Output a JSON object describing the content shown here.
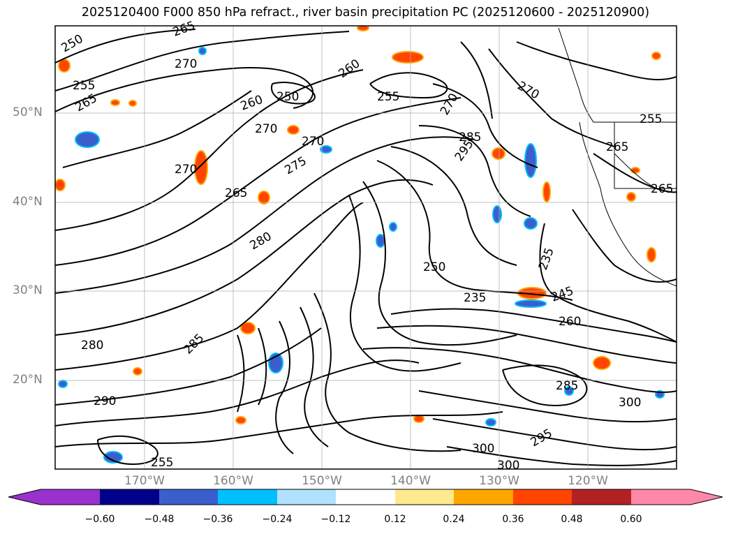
{
  "title": "2025120400 F000 850 hPa refract., river basin precipitation PC (2025120600 - 2025120900)",
  "lat_labels": [
    "50°N",
    "40°N",
    "30°N",
    "20°N"
  ],
  "lon_labels": [
    "170°W",
    "160°W",
    "150°W",
    "140°W",
    "130°W",
    "120°W"
  ],
  "contour_labels": [
    {
      "text": "250"
    },
    {
      "text": "265"
    },
    {
      "text": "255"
    },
    {
      "text": "270"
    },
    {
      "text": "250"
    },
    {
      "text": "260"
    },
    {
      "text": "265"
    },
    {
      "text": "270"
    },
    {
      "text": "270"
    },
    {
      "text": "255"
    },
    {
      "text": "260"
    },
    {
      "text": "285"
    },
    {
      "text": "295"
    },
    {
      "text": "270"
    },
    {
      "text": "255"
    },
    {
      "text": "265"
    },
    {
      "text": "270"
    },
    {
      "text": "275"
    },
    {
      "text": "265"
    },
    {
      "text": "265"
    },
    {
      "text": "280"
    },
    {
      "text": "250"
    },
    {
      "text": "235"
    },
    {
      "text": "235"
    },
    {
      "text": "245"
    },
    {
      "text": "260"
    },
    {
      "text": "280"
    },
    {
      "text": "285"
    },
    {
      "text": "290"
    },
    {
      "text": "285"
    },
    {
      "text": "300"
    },
    {
      "text": "300"
    },
    {
      "text": "300"
    },
    {
      "text": "295"
    },
    {
      "text": "255"
    },
    {
      "text": "270"
    }
  ],
  "colorbar": {
    "ticks": [
      "−0.60",
      "−0.48",
      "−0.36",
      "−0.24",
      "−0.12",
      "0.12",
      "0.24",
      "0.36",
      "0.48",
      "0.60"
    ],
    "colors": [
      "#9932cc",
      "#00008b",
      "#3a5fcd",
      "#00bfff",
      "#b0e2ff",
      "#ffffff",
      "#fee98e",
      "#ffa500",
      "#ff4500",
      "#b22222",
      "#ff88aa"
    ]
  }
}
